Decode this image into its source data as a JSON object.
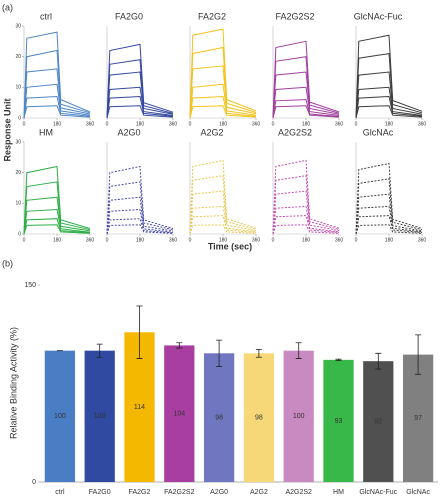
{
  "figure": {
    "panel_a_label": "(a)",
    "panel_b_label": "(b)",
    "y_label": "Response Unit",
    "x_label": "Time (sec)"
  },
  "chart_data": [
    {
      "type": "line",
      "title": "ctrl",
      "color": "#4f86c6",
      "dashed": false,
      "x": [
        0,
        15,
        180,
        200,
        360
      ],
      "xlim": [
        0,
        360
      ],
      "xticks": [
        0,
        180,
        360
      ],
      "ylim": [
        0,
        30
      ],
      "yticks": [
        0,
        10,
        20,
        30
      ],
      "series": [
        {
          "values": [
            0,
            26,
            28,
            6,
            2
          ]
        },
        {
          "values": [
            0,
            20,
            22,
            4.5,
            1.7
          ]
        },
        {
          "values": [
            0,
            15,
            16,
            3.3,
            1.3
          ]
        },
        {
          "values": [
            0,
            10,
            11,
            2.3,
            0.9
          ]
        },
        {
          "values": [
            0,
            6.5,
            7,
            1.5,
            0.6
          ]
        },
        {
          "values": [
            0,
            3.7,
            4,
            0.9,
            0.3
          ]
        }
      ]
    },
    {
      "type": "line",
      "title": "FA2G0",
      "color": "#34489e",
      "dashed": false,
      "x": [
        0,
        15,
        180,
        200,
        360
      ],
      "xlim": [
        0,
        360
      ],
      "xticks": [
        0,
        180,
        360
      ],
      "ylim": [
        0,
        30
      ],
      "series": [
        {
          "values": [
            0,
            22,
            24,
            5,
            1.9
          ]
        },
        {
          "values": [
            0,
            17.5,
            19,
            4,
            1.5
          ]
        },
        {
          "values": [
            0,
            14,
            15,
            3.1,
            1.2
          ]
        },
        {
          "values": [
            0,
            9.3,
            10,
            2.1,
            0.8
          ]
        },
        {
          "values": [
            0,
            6.5,
            7,
            1.5,
            0.6
          ]
        },
        {
          "values": [
            0,
            3.7,
            4,
            0.9,
            0.3
          ]
        }
      ]
    },
    {
      "type": "line",
      "title": "FA2G2",
      "color": "#f2c31c",
      "dashed": false,
      "x": [
        0,
        15,
        180,
        200,
        360
      ],
      "xlim": [
        0,
        360
      ],
      "xticks": [
        0,
        180,
        360
      ],
      "ylim": [
        0,
        30
      ],
      "series": [
        {
          "values": [
            0,
            27,
            29,
            6,
            2.3
          ]
        },
        {
          "values": [
            0,
            21,
            23,
            4.8,
            1.8
          ]
        },
        {
          "values": [
            0,
            16,
            17,
            3.5,
            1.4
          ]
        },
        {
          "values": [
            0,
            10,
            11,
            2.3,
            0.9
          ]
        },
        {
          "values": [
            0,
            6.5,
            7,
            1.5,
            0.6
          ]
        },
        {
          "values": [
            0,
            3.7,
            4,
            0.9,
            0.3
          ]
        }
      ]
    },
    {
      "type": "line",
      "title": "FA2G2S2",
      "color": "#a0409c",
      "dashed": false,
      "x": [
        0,
        15,
        180,
        200,
        360
      ],
      "xlim": [
        0,
        360
      ],
      "xticks": [
        0,
        180,
        360
      ],
      "ylim": [
        0,
        30
      ],
      "series": [
        {
          "values": [
            0,
            23,
            25,
            5.2,
            2
          ]
        },
        {
          "values": [
            0,
            18.5,
            20,
            4.2,
            1.6
          ]
        },
        {
          "values": [
            0,
            14,
            15,
            3.1,
            1.2
          ]
        },
        {
          "values": [
            0,
            9.3,
            10,
            2.1,
            0.8
          ]
        },
        {
          "values": [
            0,
            5.6,
            6,
            1.3,
            0.5
          ]
        },
        {
          "values": [
            0,
            3.7,
            4,
            0.9,
            0.3
          ]
        }
      ]
    },
    {
      "type": "line",
      "title": "GlcNAc-Fuc",
      "color": "#3e3e3e",
      "dashed": false,
      "x": [
        0,
        15,
        180,
        200,
        360
      ],
      "xlim": [
        0,
        360
      ],
      "xticks": [
        0,
        180,
        360
      ],
      "ylim": [
        0,
        30
      ],
      "series": [
        {
          "values": [
            0,
            25,
            27,
            5.7,
            2.2
          ]
        },
        {
          "values": [
            0,
            19.5,
            21,
            4.4,
            1.7
          ]
        },
        {
          "values": [
            0,
            14,
            15,
            3.1,
            1.2
          ]
        },
        {
          "values": [
            0,
            9.3,
            10,
            2.1,
            0.8
          ]
        },
        {
          "values": [
            0,
            6.5,
            7,
            1.5,
            0.6
          ]
        },
        {
          "values": [
            0,
            3.7,
            4,
            0.9,
            0.3
          ]
        }
      ]
    },
    {
      "type": "line",
      "title": "HM",
      "color": "#2eaf48",
      "dashed": false,
      "x": [
        0,
        15,
        180,
        200,
        360
      ],
      "xlim": [
        0,
        360
      ],
      "xticks": [
        0,
        180,
        360
      ],
      "ylim": [
        0,
        30
      ],
      "yticks": [
        0,
        10,
        20,
        30
      ],
      "series": [
        {
          "values": [
            0,
            20,
            22,
            4.6,
            1.8
          ]
        },
        {
          "values": [
            0,
            15.5,
            17,
            3.6,
            1.4
          ]
        },
        {
          "values": [
            0,
            11,
            12,
            2.5,
            1
          ]
        },
        {
          "values": [
            0,
            7.4,
            8,
            1.7,
            0.6
          ]
        },
        {
          "values": [
            0,
            4.6,
            5,
            1.1,
            0.4
          ]
        },
        {
          "values": [
            0,
            2.8,
            3,
            0.7,
            0.2
          ]
        }
      ]
    },
    {
      "type": "line",
      "title": "A2G0",
      "color": "#4848a8",
      "dashed": true,
      "x": [
        0,
        15,
        180,
        200,
        360
      ],
      "xlim": [
        0,
        360
      ],
      "xticks": [
        0,
        180,
        360
      ],
      "ylim": [
        0,
        30
      ],
      "series": [
        {
          "values": [
            0,
            20,
            22,
            4.6,
            1.8
          ]
        },
        {
          "values": [
            0,
            15.5,
            17,
            3.6,
            1.4
          ]
        },
        {
          "values": [
            0,
            11,
            12,
            2.5,
            1
          ]
        },
        {
          "values": [
            0,
            7.4,
            8,
            1.7,
            0.6
          ]
        },
        {
          "values": [
            0,
            4.6,
            5,
            1.1,
            0.4
          ]
        },
        {
          "values": [
            0,
            2.8,
            3,
            0.7,
            0.2
          ]
        }
      ]
    },
    {
      "type": "line",
      "title": "A2G2",
      "color": "#e8c850",
      "dashed": true,
      "x": [
        0,
        15,
        180,
        200,
        360
      ],
      "xlim": [
        0,
        360
      ],
      "xticks": [
        0,
        180,
        360
      ],
      "ylim": [
        0,
        30
      ],
      "series": [
        {
          "values": [
            0,
            22,
            24,
            5,
            1.9
          ]
        },
        {
          "values": [
            0,
            17.5,
            19,
            4,
            1.5
          ]
        },
        {
          "values": [
            0,
            13,
            14,
            2.9,
            1.1
          ]
        },
        {
          "values": [
            0,
            8.4,
            9,
            1.9,
            0.7
          ]
        },
        {
          "values": [
            0,
            5.6,
            6,
            1.3,
            0.5
          ]
        },
        {
          "values": [
            0,
            2.8,
            3,
            0.7,
            0.2
          ]
        }
      ]
    },
    {
      "type": "line",
      "title": "A2G2S2",
      "color": "#c04cb0",
      "dashed": true,
      "x": [
        0,
        15,
        180,
        200,
        360
      ],
      "xlim": [
        0,
        360
      ],
      "xticks": [
        0,
        180,
        360
      ],
      "ylim": [
        0,
        30
      ],
      "series": [
        {
          "values": [
            0,
            22,
            24,
            5,
            1.9
          ]
        },
        {
          "values": [
            0,
            17.5,
            19,
            4,
            1.5
          ]
        },
        {
          "values": [
            0,
            13,
            14,
            2.9,
            1.1
          ]
        },
        {
          "values": [
            0,
            8.4,
            9,
            1.9,
            0.7
          ]
        },
        {
          "values": [
            0,
            5.6,
            6,
            1.3,
            0.5
          ]
        },
        {
          "values": [
            0,
            2.8,
            3,
            0.7,
            0.2
          ]
        }
      ]
    },
    {
      "type": "line",
      "title": "GlcNAc",
      "color": "#3e3e3e",
      "dashed": true,
      "x": [
        0,
        15,
        180,
        200,
        360
      ],
      "xlim": [
        0,
        360
      ],
      "xticks": [
        0,
        180,
        360
      ],
      "ylim": [
        0,
        30
      ],
      "series": [
        {
          "values": [
            0,
            21,
            23,
            4.8,
            1.8
          ]
        },
        {
          "values": [
            0,
            16.5,
            18,
            3.8,
            1.4
          ]
        },
        {
          "values": [
            0,
            12,
            13,
            2.7,
            1
          ]
        },
        {
          "values": [
            0,
            8.4,
            9,
            1.9,
            0.7
          ]
        },
        {
          "values": [
            0,
            5.6,
            6,
            1.3,
            0.5
          ]
        },
        {
          "values": [
            0,
            2.8,
            3,
            0.7,
            0.2
          ]
        }
      ]
    },
    {
      "type": "bar",
      "y_label": "Relative Binding Activity (%)",
      "categories": [
        "ctrl",
        "FA2G0",
        "FA2G2",
        "FA2G2S2",
        "A2G0",
        "A2G2",
        "A2G2S2",
        "HM",
        "GlcNAc-Fuc",
        "GlcNAc"
      ],
      "values": [
        100,
        100,
        114,
        104,
        98,
        98,
        100,
        93,
        92,
        97
      ],
      "errors": [
        0,
        5,
        20,
        2,
        10,
        3,
        6,
        0.5,
        6,
        15
      ],
      "colors": [
        "#4a7ec4",
        "#2f4aa0",
        "#f5b800",
        "#a83ea0",
        "#7077c0",
        "#f7d878",
        "#c88ac0",
        "#38b848",
        "#505050",
        "#808080"
      ],
      "ylim": [
        0,
        150
      ],
      "yticks": [
        0,
        150
      ]
    }
  ]
}
